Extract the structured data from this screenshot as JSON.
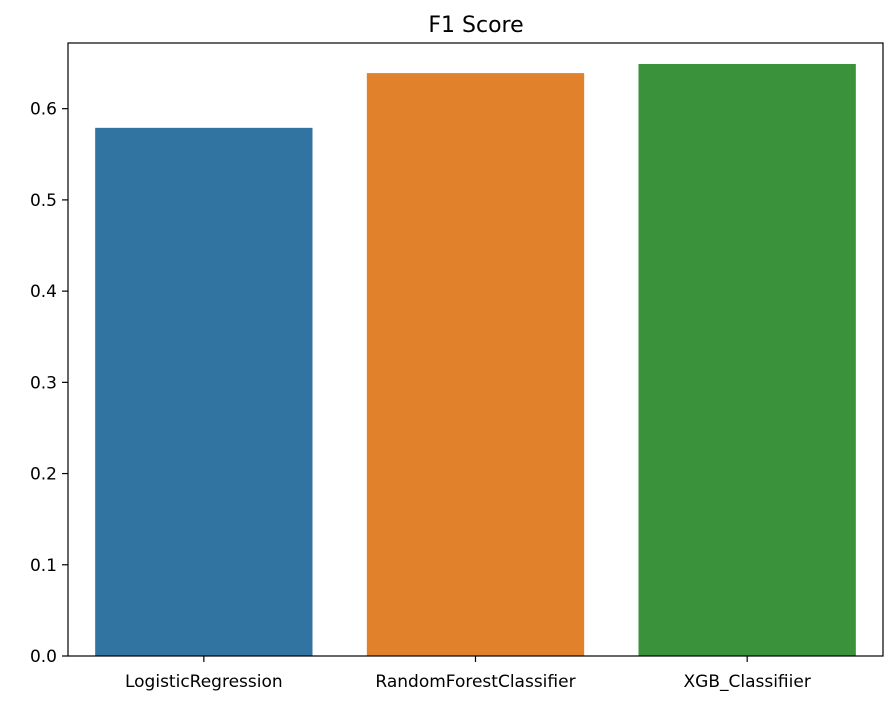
{
  "chart_data": {
    "type": "bar",
    "title": "F1 Score",
    "xlabel": "",
    "ylabel": "",
    "categories": [
      "LogisticRegression",
      "RandomForestClassifier",
      "XGB_Classifiier"
    ],
    "values": [
      0.579,
      0.639,
      0.649
    ],
    "colors": [
      "#3274a1",
      "#e1812c",
      "#3a923a"
    ],
    "ylim": [
      0,
      0.672
    ],
    "yticks": [
      0.0,
      0.1,
      0.2,
      0.3,
      0.4,
      0.5,
      0.6
    ],
    "ytick_labels": [
      "0.0",
      "0.1",
      "0.2",
      "0.3",
      "0.4",
      "0.5",
      "0.6"
    ],
    "grid": false,
    "legend": "none"
  }
}
